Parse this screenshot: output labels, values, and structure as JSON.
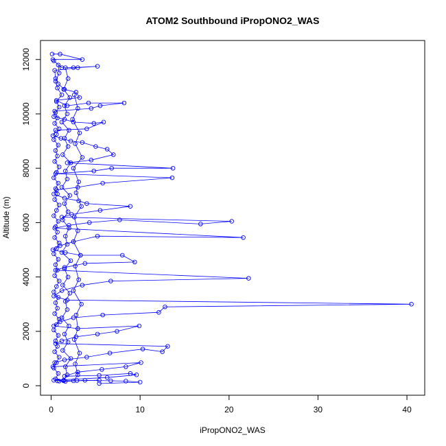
{
  "chart_data": {
    "type": "line",
    "title": "ATOM2 Southbound iPropONO2_WAS",
    "xlabel": "iPropONO2_WAS",
    "ylabel": "Altitude (m)",
    "xlim": [
      -1.2,
      42.0
    ],
    "ylim": [
      -350,
      12700
    ],
    "x_ticks": [
      0,
      10,
      20,
      30,
      40
    ],
    "y_ticks": [
      0,
      2000,
      4000,
      6000,
      8000,
      10000,
      12000
    ],
    "grid": false,
    "legend": "none",
    "color": "#0000ff",
    "series": [
      {
        "points": [
          [
            0.1,
            12200
          ],
          [
            1.0,
            12200
          ],
          [
            3.5,
            12000
          ],
          [
            0.2,
            12000
          ],
          [
            0.3,
            11950
          ],
          [
            1.2,
            11700
          ],
          [
            2.5,
            11700
          ],
          [
            5.2,
            11750
          ],
          [
            3.0,
            11700
          ],
          [
            0.4,
            11600
          ],
          [
            0.5,
            11300
          ],
          [
            0.8,
            11100
          ],
          [
            1.5,
            10900
          ],
          [
            2.8,
            10800
          ],
          [
            3.2,
            10600
          ],
          [
            0.6,
            10500
          ],
          [
            1.8,
            10300
          ],
          [
            4.2,
            10400
          ],
          [
            8.2,
            10400
          ],
          [
            5.5,
            10300
          ],
          [
            4.5,
            10200
          ],
          [
            0.4,
            10100
          ],
          [
            0.3,
            9900
          ],
          [
            1.5,
            9800
          ],
          [
            2.5,
            9700
          ],
          [
            4.8,
            9650
          ],
          [
            5.9,
            9700
          ],
          [
            4.0,
            9450
          ],
          [
            0.5,
            9400
          ],
          [
            0.2,
            9200
          ],
          [
            1.1,
            9100
          ],
          [
            2.2,
            9000
          ],
          [
            3.5,
            8950
          ],
          [
            5.0,
            8800
          ],
          [
            6.3,
            8700
          ],
          [
            7.0,
            8500
          ],
          [
            4.5,
            8300
          ],
          [
            1.8,
            8200
          ],
          [
            13.7,
            8000
          ],
          [
            6.8,
            8000
          ],
          [
            4.8,
            7900
          ],
          [
            0.5,
            7800
          ],
          [
            13.6,
            7650
          ],
          [
            5.8,
            7450
          ],
          [
            3.0,
            7300
          ],
          [
            0.6,
            7200
          ],
          [
            0.3,
            7050
          ],
          [
            1.5,
            6900
          ],
          [
            3.1,
            6800
          ],
          [
            4.0,
            6700
          ],
          [
            8.9,
            6600
          ],
          [
            5.5,
            6450
          ],
          [
            2.3,
            6300
          ],
          [
            1.2,
            6200
          ],
          [
            20.3,
            6050
          ],
          [
            16.8,
            5950
          ],
          [
            7.7,
            6100
          ],
          [
            4.3,
            6000
          ],
          [
            2.0,
            5900
          ],
          [
            0.4,
            5800
          ],
          [
            21.6,
            5450
          ],
          [
            5.2,
            5500
          ],
          [
            2.5,
            5300
          ],
          [
            1.0,
            5150
          ],
          [
            0.2,
            5000
          ],
          [
            1.6,
            4900
          ],
          [
            3.3,
            4800
          ],
          [
            8.0,
            4800
          ],
          [
            9.4,
            4550
          ],
          [
            3.8,
            4500
          ],
          [
            1.5,
            4350
          ],
          [
            0.5,
            4250
          ],
          [
            22.2,
            3950
          ],
          [
            6.7,
            3850
          ],
          [
            3.5,
            3700
          ],
          [
            1.2,
            3500
          ],
          [
            0.3,
            3300
          ],
          [
            1.8,
            3150
          ],
          [
            40.5,
            3000
          ],
          [
            12.8,
            2900
          ],
          [
            12.1,
            2700
          ],
          [
            5.8,
            2600
          ],
          [
            2.5,
            2500
          ],
          [
            1.0,
            2350
          ],
          [
            0.3,
            2200
          ],
          [
            3.0,
            2100
          ],
          [
            9.9,
            2200
          ],
          [
            7.4,
            2000
          ],
          [
            5.2,
            1900
          ],
          [
            2.8,
            1800
          ],
          [
            1.2,
            1650
          ],
          [
            0.5,
            1550
          ],
          [
            13.1,
            1450
          ],
          [
            12.5,
            1250
          ],
          [
            10.3,
            1350
          ],
          [
            6.6,
            1200
          ],
          [
            4.0,
            1050
          ],
          [
            1.5,
            950
          ],
          [
            0.4,
            850
          ],
          [
            0.2,
            700
          ],
          [
            10.1,
            850
          ],
          [
            8.4,
            700
          ],
          [
            5.7,
            600
          ],
          [
            3.0,
            500
          ],
          [
            1.5,
            350
          ],
          [
            5.4,
            380
          ],
          [
            8.9,
            450
          ],
          [
            9.6,
            400
          ],
          [
            6.3,
            300
          ],
          [
            0.3,
            200
          ],
          [
            1.4,
            180
          ],
          [
            2.9,
            190
          ],
          [
            5.4,
            200
          ],
          [
            0.9,
            170
          ],
          [
            1.6,
            160
          ],
          [
            3.8,
            200
          ],
          [
            6.7,
            180
          ],
          [
            8.4,
            170
          ],
          [
            10.0,
            130
          ],
          [
            5.4,
            80
          ]
        ]
      },
      {
        "points": [
          [
            0.8,
            11800
          ],
          [
            0.9,
            11500
          ],
          [
            0.5,
            11200
          ],
          [
            0.7,
            10950
          ],
          [
            1.2,
            10700
          ],
          [
            0.6,
            10450
          ],
          [
            0.9,
            10250
          ],
          [
            0.5,
            10050
          ],
          [
            0.7,
            9850
          ],
          [
            0.4,
            9650
          ],
          [
            0.9,
            9450
          ],
          [
            0.6,
            9250
          ],
          [
            0.3,
            9050
          ],
          [
            0.8,
            8850
          ],
          [
            0.5,
            8650
          ],
          [
            0.7,
            8450
          ],
          [
            0.4,
            8250
          ],
          [
            0.9,
            8050
          ],
          [
            0.6,
            7850
          ],
          [
            0.3,
            7650
          ],
          [
            0.8,
            7450
          ],
          [
            0.5,
            7250
          ],
          [
            0.7,
            7050
          ],
          [
            0.4,
            6850
          ],
          [
            0.9,
            6650
          ],
          [
            0.6,
            6450
          ],
          [
            0.3,
            6250
          ],
          [
            0.8,
            6050
          ],
          [
            0.5,
            5850
          ],
          [
            0.7,
            5650
          ],
          [
            0.4,
            5450
          ],
          [
            0.9,
            5250
          ],
          [
            0.6,
            5050
          ],
          [
            0.3,
            4850
          ],
          [
            0.8,
            4650
          ],
          [
            0.5,
            4450
          ],
          [
            0.7,
            4250
          ],
          [
            0.4,
            4050
          ],
          [
            0.9,
            3850
          ],
          [
            0.6,
            3650
          ],
          [
            0.3,
            3450
          ],
          [
            0.8,
            3250
          ],
          [
            0.5,
            3050
          ],
          [
            0.7,
            2850
          ],
          [
            0.4,
            2650
          ],
          [
            0.9,
            2450
          ],
          [
            0.6,
            2250
          ],
          [
            0.3,
            2050
          ],
          [
            0.8,
            1850
          ],
          [
            0.5,
            1650
          ],
          [
            0.7,
            1450
          ],
          [
            0.4,
            1250
          ],
          [
            0.9,
            1050
          ],
          [
            0.6,
            850
          ],
          [
            0.3,
            650
          ],
          [
            0.8,
            450
          ],
          [
            0.5,
            250
          ],
          [
            0.7,
            180
          ]
        ]
      },
      {
        "points": [
          [
            1.6,
            11700
          ],
          [
            1.9,
            11300
          ],
          [
            1.4,
            10900
          ],
          [
            2.1,
            10600
          ],
          [
            1.5,
            10300
          ],
          [
            1.8,
            10000
          ],
          [
            1.2,
            9700
          ],
          [
            2.0,
            9400
          ],
          [
            1.5,
            9100
          ],
          [
            1.9,
            8800
          ],
          [
            1.3,
            8500
          ],
          [
            2.2,
            8200
          ],
          [
            1.6,
            7900
          ],
          [
            1.8,
            7600
          ],
          [
            1.2,
            7300
          ],
          [
            2.1,
            7000
          ],
          [
            1.5,
            6700
          ],
          [
            1.9,
            6400
          ],
          [
            1.3,
            6100
          ],
          [
            2.0,
            5800
          ],
          [
            1.6,
            5500
          ],
          [
            1.8,
            5200
          ],
          [
            1.2,
            4900
          ],
          [
            2.2,
            4600
          ],
          [
            1.5,
            4300
          ],
          [
            1.9,
            4000
          ],
          [
            1.3,
            3700
          ],
          [
            2.1,
            3400
          ],
          [
            1.6,
            3100
          ],
          [
            1.8,
            2800
          ],
          [
            1.2,
            2500
          ],
          [
            2.0,
            2200
          ],
          [
            1.5,
            1900
          ],
          [
            1.9,
            1600
          ],
          [
            1.3,
            1300
          ],
          [
            2.2,
            1000
          ],
          [
            1.6,
            700
          ],
          [
            1.8,
            400
          ],
          [
            1.4,
            200
          ]
        ]
      },
      {
        "points": [
          [
            2.6,
            10700
          ],
          [
            3.0,
            10200
          ],
          [
            2.4,
            9800
          ],
          [
            3.2,
            9300
          ],
          [
            2.7,
            8900
          ],
          [
            3.5,
            8400
          ],
          [
            2.5,
            8000
          ],
          [
            3.1,
            7500
          ],
          [
            2.8,
            7100
          ],
          [
            3.4,
            6600
          ],
          [
            2.6,
            6200
          ],
          [
            3.0,
            5700
          ],
          [
            2.5,
            5300
          ],
          [
            3.3,
            4800
          ],
          [
            2.7,
            4400
          ],
          [
            3.1,
            3900
          ],
          [
            2.5,
            3500
          ],
          [
            3.4,
            3000
          ],
          [
            2.8,
            2600
          ],
          [
            3.0,
            2100
          ],
          [
            2.6,
            1700
          ],
          [
            3.2,
            1200
          ],
          [
            2.7,
            800
          ],
          [
            3.0,
            400
          ],
          [
            2.5,
            180
          ]
        ]
      }
    ]
  }
}
